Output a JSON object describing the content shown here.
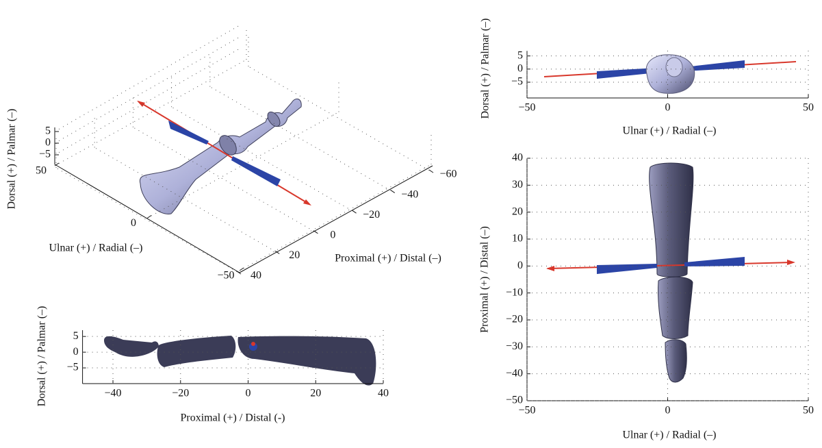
{
  "chart_data": [
    {
      "type": "view3d",
      "xlabel": "Proximal (+) / Distal (–)",
      "ylabel": "Ulnar (+) / Radial (–)",
      "zlabel": "Dorsal (+) / Palmar (–)",
      "xlim": [
        -60,
        40
      ],
      "xticks": [
        40,
        20,
        0,
        {
          "value": -20,
          "label": "−20"
        },
        {
          "value": -40,
          "label": "−40"
        },
        {
          "value": -60,
          "label": "−60"
        }
      ],
      "ylim": [
        -50,
        50
      ],
      "yticks": [
        50,
        0,
        {
          "value": -50,
          "label": "−50"
        }
      ],
      "zlim": [
        -5,
        5
      ],
      "zticks": [
        5,
        0,
        {
          "value": -5,
          "label": "−5"
        }
      ],
      "grid": true
    },
    {
      "type": "view2d",
      "xlabel": "Ulnar (+) / Radial (–)",
      "ylabel": "Dorsal (+) / Palmar (–)",
      "xlim": [
        -50,
        50
      ],
      "xticks": [
        {
          "value": -50,
          "label": "−50"
        },
        0,
        50
      ],
      "ylim": [
        -11,
        7
      ],
      "yticks": [
        {
          "value": -5,
          "label": "−5"
        },
        0,
        5
      ],
      "grid": true
    },
    {
      "type": "view2d",
      "xlabel": "Proximal (+) / Distal (-)",
      "ylabel": "Dorsal (+) / Palmar (–)",
      "xlim": [
        -49,
        40
      ],
      "xticks": [
        {
          "value": -40,
          "label": "−40"
        },
        {
          "value": -20,
          "label": "−20"
        },
        0,
        20,
        40
      ],
      "ylim": [
        -10,
        7
      ],
      "yticks": [
        {
          "value": -5,
          "label": "−5"
        },
        0,
        5
      ],
      "grid": true
    },
    {
      "type": "view2d",
      "xlabel": "Ulnar (+) / Radial (–)",
      "ylabel": "Proximal (+) / Distal (–)",
      "xlim": [
        -50,
        50
      ],
      "xticks": [
        {
          "value": -50,
          "label": "−50"
        },
        0,
        50
      ],
      "ylim": [
        -50,
        40
      ],
      "yticks": [
        {
          "value": -50,
          "label": "−50"
        },
        {
          "value": -40,
          "label": "−40"
        },
        {
          "value": -30,
          "label": "−30"
        },
        {
          "value": -20,
          "label": "−20"
        },
        {
          "value": -10,
          "label": "−10"
        },
        0,
        10,
        20,
        30,
        40
      ],
      "grid": true
    }
  ]
}
